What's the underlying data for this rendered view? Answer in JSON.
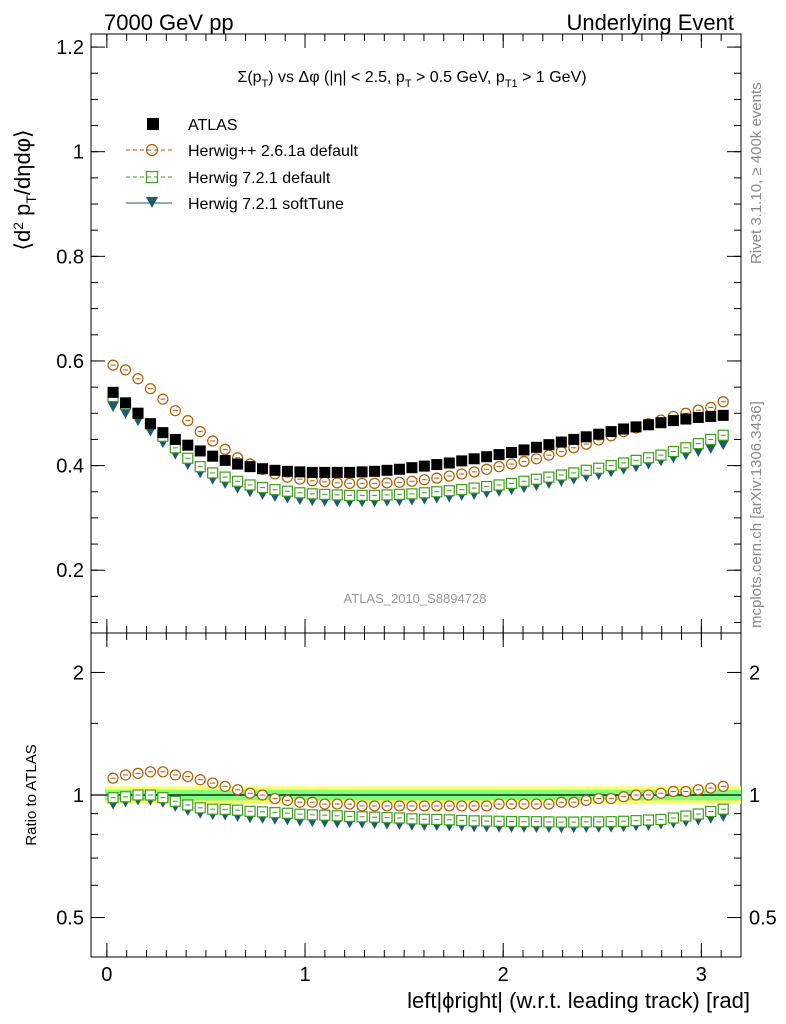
{
  "header": {
    "left": "7000 GeV pp",
    "right": "Underlying Event"
  },
  "plot_title": "Σ(p_T) vs Δφ (|η| < 2.5, p_T > 0.5 GeV, p_T1 > 1 GeV)",
  "side_text": {
    "rivet": "Rivet 3.1.10, ≥ 400k events",
    "mcplots": "mcplots.cern.ch [arXiv:1306.3436]"
  },
  "analysis_label": "ATLAS_2010_S8894728",
  "chart_data": [
    {
      "type": "scatter",
      "panel": "main",
      "ylabel": "⟨d² p_T/dηdφ⟩",
      "xlim": [
        -0.08,
        3.2
      ],
      "ylim": [
        0.08,
        1.225
      ],
      "y_ticks": [
        "0.2",
        "0.4",
        "0.6",
        "0.8",
        "1",
        "1.2"
      ],
      "x_bin_centers": [
        0.0314,
        0.0942,
        0.1571,
        0.2199,
        0.2827,
        0.3456,
        0.4084,
        0.4712,
        0.5341,
        0.5969,
        0.6597,
        0.7226,
        0.7854,
        0.8482,
        0.9111,
        0.9739,
        1.0367,
        1.0996,
        1.1624,
        1.2252,
        1.2881,
        1.3509,
        1.4137,
        1.4765,
        1.5394,
        1.6022,
        1.665,
        1.7279,
        1.7907,
        1.8535,
        1.9164,
        1.9792,
        2.042,
        2.1049,
        2.1677,
        2.2305,
        2.2934,
        2.3562,
        2.419,
        2.4819,
        2.5447,
        2.6075,
        2.6704,
        2.7332,
        2.796,
        2.8588,
        2.9217,
        2.9845,
        3.0473,
        3.1102
      ],
      "series": [
        {
          "name": "ATLAS",
          "marker": "filled-square",
          "color": "#000000",
          "values": [
            0.54,
            0.52,
            0.5,
            0.48,
            0.463,
            0.45,
            0.439,
            0.428,
            0.418,
            0.41,
            0.403,
            0.398,
            0.394,
            0.391,
            0.389,
            0.388,
            0.387,
            0.387,
            0.387,
            0.387,
            0.388,
            0.389,
            0.391,
            0.393,
            0.396,
            0.399,
            0.402,
            0.405,
            0.409,
            0.413,
            0.417,
            0.421,
            0.425,
            0.43,
            0.435,
            0.44,
            0.445,
            0.45,
            0.455,
            0.46,
            0.465,
            0.47,
            0.474,
            0.478,
            0.482,
            0.486,
            0.489,
            0.492,
            0.494,
            0.496
          ]
        },
        {
          "name": "Herwig++ 2.6.1a default",
          "marker": "open-circle",
          "line": "dashed",
          "color": "#b35a00",
          "values": [
            0.592,
            0.583,
            0.566,
            0.547,
            0.527,
            0.505,
            0.486,
            0.465,
            0.447,
            0.431,
            0.415,
            0.403,
            0.393,
            0.384,
            0.378,
            0.374,
            0.371,
            0.369,
            0.367,
            0.366,
            0.366,
            0.366,
            0.367,
            0.368,
            0.37,
            0.373,
            0.376,
            0.38,
            0.384,
            0.388,
            0.393,
            0.398,
            0.403,
            0.408,
            0.413,
            0.42,
            0.427,
            0.434,
            0.441,
            0.449,
            0.457,
            0.465,
            0.472,
            0.48,
            0.487,
            0.494,
            0.5,
            0.506,
            0.511,
            0.522
          ]
        },
        {
          "name": "Herwig 7.2.1 default",
          "marker": "open-square",
          "line": "dashed",
          "color": "#3d9e1a",
          "values": [
            0.532,
            0.517,
            0.5,
            0.48,
            0.456,
            0.434,
            0.414,
            0.398,
            0.386,
            0.378,
            0.37,
            0.363,
            0.358,
            0.354,
            0.351,
            0.348,
            0.346,
            0.345,
            0.344,
            0.343,
            0.343,
            0.343,
            0.344,
            0.345,
            0.346,
            0.348,
            0.35,
            0.352,
            0.354,
            0.357,
            0.36,
            0.363,
            0.366,
            0.37,
            0.374,
            0.378,
            0.382,
            0.386,
            0.391,
            0.395,
            0.4,
            0.405,
            0.41,
            0.415,
            0.42,
            0.427,
            0.434,
            0.442,
            0.45,
            0.458
          ]
        },
        {
          "name": "Herwig 7.2.1 softTune",
          "marker": "filled-triangle-down",
          "line": "solid",
          "color": "#1d5c6e",
          "values": [
            0.513,
            0.5,
            0.486,
            0.466,
            0.444,
            0.422,
            0.402,
            0.386,
            0.374,
            0.366,
            0.357,
            0.35,
            0.345,
            0.341,
            0.338,
            0.335,
            0.333,
            0.332,
            0.331,
            0.331,
            0.331,
            0.331,
            0.332,
            0.333,
            0.334,
            0.336,
            0.338,
            0.34,
            0.343,
            0.345,
            0.348,
            0.351,
            0.354,
            0.358,
            0.362,
            0.366,
            0.37,
            0.374,
            0.379,
            0.383,
            0.388,
            0.393,
            0.398,
            0.403,
            0.409,
            0.415,
            0.421,
            0.427,
            0.433,
            0.44
          ]
        }
      ],
      "legend_placement": "top-left"
    },
    {
      "type": "scatter",
      "panel": "ratio",
      "ylabel": "Ratio to ATLAS",
      "xlabel": "left|ϕright| (w.r.t. leading track) [rad]",
      "x_ticks": [
        "0",
        "1",
        "2",
        "3"
      ],
      "y_ticks": [
        "0.5",
        "1",
        "2"
      ],
      "y_scale": "log",
      "ylim": [
        0.4,
        2.5
      ],
      "reference_band": {
        "inner": [
          0.97,
          1.03
        ],
        "outer": [
          0.95,
          1.05
        ],
        "inner_color": "#7fff7f",
        "outer_color": "#ffff66"
      },
      "series_ratio": [
        {
          "name": "Herwig++ 2.6.1a default",
          "values": [
            1.1,
            1.12,
            1.13,
            1.14,
            1.14,
            1.12,
            1.11,
            1.09,
            1.07,
            1.05,
            1.03,
            1.01,
            1.0,
            0.98,
            0.97,
            0.96,
            0.96,
            0.95,
            0.95,
            0.95,
            0.94,
            0.94,
            0.94,
            0.94,
            0.94,
            0.94,
            0.94,
            0.94,
            0.94,
            0.94,
            0.94,
            0.95,
            0.95,
            0.95,
            0.95,
            0.95,
            0.96,
            0.96,
            0.97,
            0.98,
            0.98,
            0.99,
            1.0,
            1.0,
            1.01,
            1.02,
            1.02,
            1.03,
            1.04,
            1.05
          ]
        },
        {
          "name": "Herwig 7.2.1 default",
          "values": [
            0.985,
            0.99,
            1.0,
            1.0,
            0.985,
            0.965,
            0.945,
            0.93,
            0.923,
            0.922,
            0.918,
            0.912,
            0.909,
            0.905,
            0.902,
            0.897,
            0.894,
            0.892,
            0.889,
            0.886,
            0.884,
            0.882,
            0.88,
            0.878,
            0.874,
            0.872,
            0.871,
            0.869,
            0.866,
            0.864,
            0.863,
            0.862,
            0.861,
            0.86,
            0.86,
            0.859,
            0.858,
            0.858,
            0.859,
            0.859,
            0.86,
            0.862,
            0.865,
            0.868,
            0.871,
            0.878,
            0.888,
            0.898,
            0.911,
            0.923
          ]
        },
        {
          "name": "Herwig 7.2.1 softTune",
          "values": [
            0.95,
            0.962,
            0.972,
            0.971,
            0.959,
            0.938,
            0.916,
            0.902,
            0.895,
            0.893,
            0.886,
            0.879,
            0.876,
            0.872,
            0.869,
            0.863,
            0.86,
            0.858,
            0.855,
            0.855,
            0.853,
            0.851,
            0.849,
            0.847,
            0.843,
            0.842,
            0.841,
            0.84,
            0.839,
            0.835,
            0.835,
            0.834,
            0.833,
            0.833,
            0.832,
            0.832,
            0.831,
            0.831,
            0.833,
            0.833,
            0.834,
            0.836,
            0.84,
            0.843,
            0.849,
            0.854,
            0.861,
            0.868,
            0.877,
            0.887
          ]
        }
      ]
    }
  ]
}
